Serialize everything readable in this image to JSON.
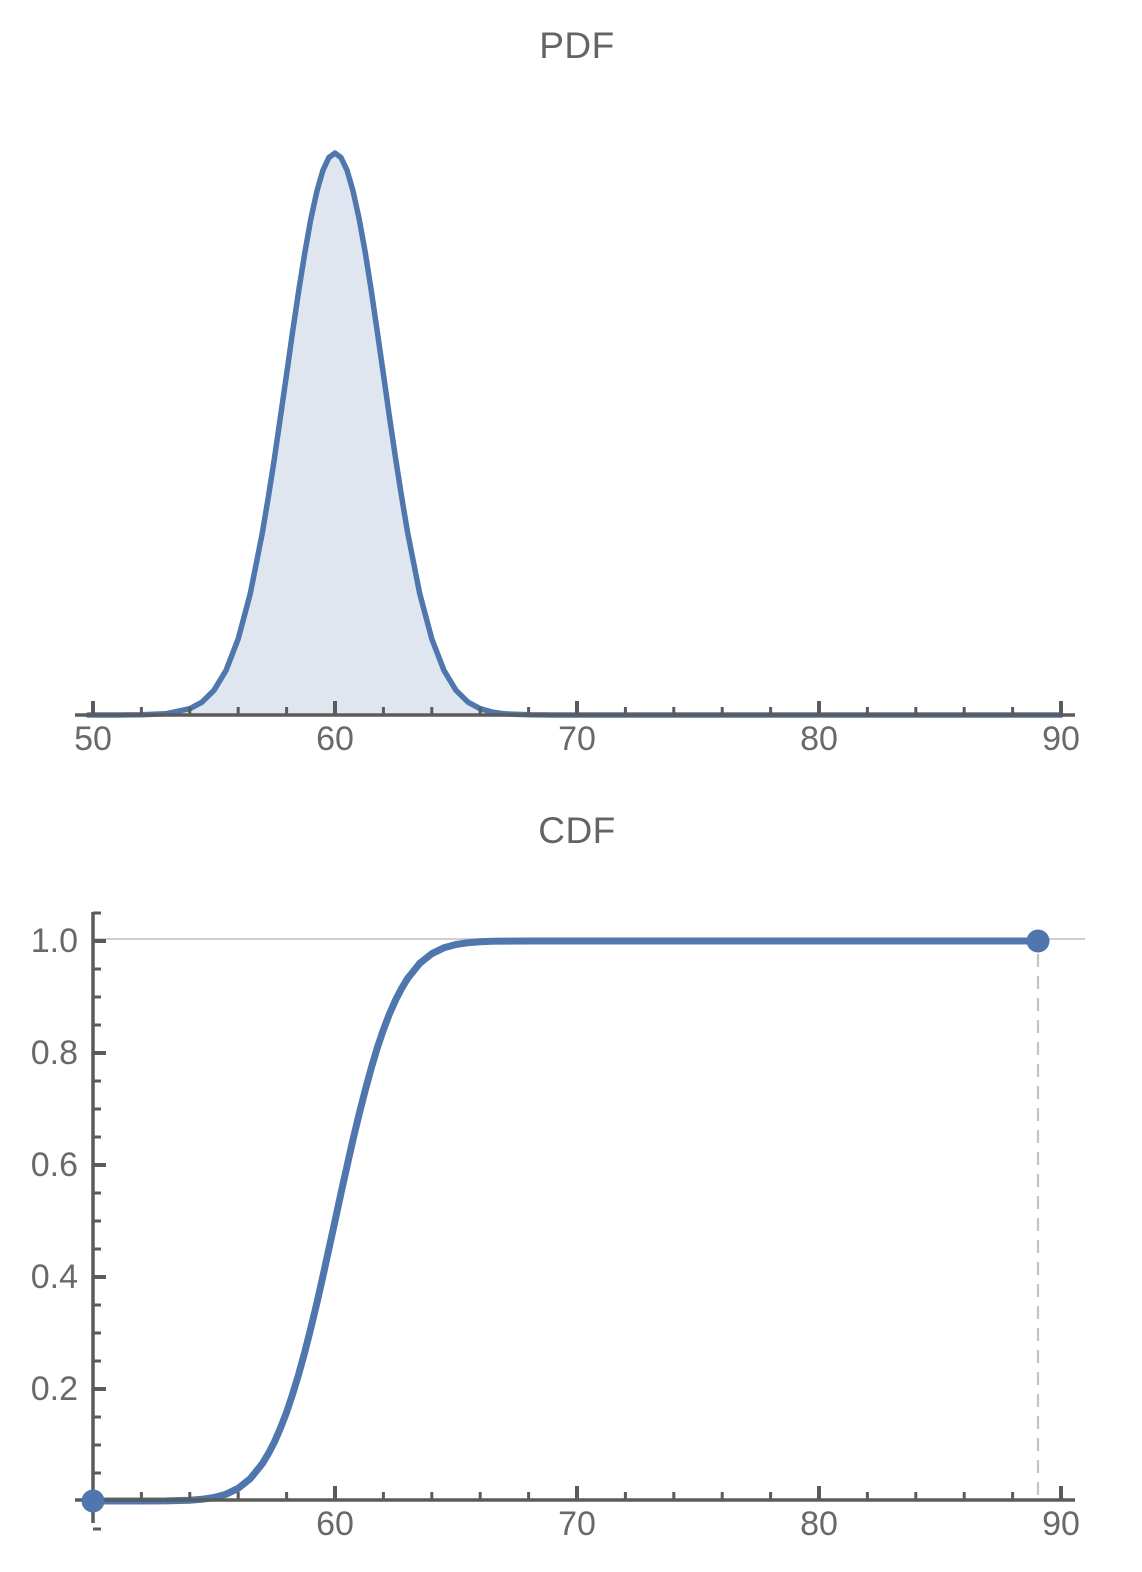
{
  "page": {
    "background": "#ffffff"
  },
  "palette": {
    "line_color": "#4f77ad",
    "fill_color": "rgba(79,119,173,0.18)",
    "marker_color": "#4f77ad",
    "axis_color": "#5b5b5b",
    "label_color": "#696969",
    "grid_color": "#c9c9c9",
    "dash_color": "#c4c4c4",
    "title_color": "#646464"
  },
  "chart_data": [
    {
      "type": "area",
      "title": "PDF",
      "subtitle": "",
      "distribution": "Normal(mean 60, sd 2) probability density",
      "xlabel": "",
      "ylabel": "",
      "xlim": [
        49.3,
        90.6
      ],
      "ylim": [
        0,
        0.21
      ],
      "grid": false,
      "legend": "none",
      "xticks_major": [
        50,
        60,
        70,
        80,
        90
      ],
      "xtick_labels": [
        "50",
        "60",
        "70",
        "80",
        "90"
      ],
      "xtick_minor_step": 2,
      "peak": {
        "x": 60,
        "y": 0.19947
      },
      "x": [
        49.8,
        51,
        52,
        53,
        54,
        54.5,
        55,
        55.5,
        56,
        56.5,
        57,
        57.25,
        57.5,
        57.75,
        58,
        58.25,
        58.5,
        58.75,
        59,
        59.25,
        59.5,
        59.75,
        60,
        60.25,
        60.5,
        60.75,
        61,
        61.25,
        61.5,
        61.75,
        62,
        62.25,
        62.5,
        62.75,
        63,
        63.5,
        64,
        64.5,
        65,
        65.5,
        66,
        66.5,
        67,
        68,
        69,
        70,
        72,
        75,
        80,
        85,
        90
      ],
      "y": [
        0,
        1e-05,
        7e-05,
        0.00044,
        0.00222,
        0.00455,
        0.00876,
        0.01586,
        0.027,
        0.04313,
        0.06477,
        0.0775,
        0.09132,
        0.10596,
        0.12099,
        0.13602,
        0.15058,
        0.16408,
        0.17603,
        0.18592,
        0.19333,
        0.19792,
        0.19947,
        0.19792,
        0.19333,
        0.18592,
        0.17603,
        0.16408,
        0.15058,
        0.13602,
        0.12099,
        0.10596,
        0.09132,
        0.0775,
        0.06477,
        0.04313,
        0.027,
        0.01586,
        0.00876,
        0.00455,
        0.00222,
        0.00102,
        0.00044,
        7e-05,
        1e-05,
        0,
        0,
        0,
        0,
        0,
        0
      ]
    },
    {
      "type": "line",
      "title": "CDF",
      "subtitle": "",
      "distribution": "Normal(mean 60, sd 2) cumulative distribution",
      "xlabel": "",
      "ylabel": "",
      "xlim": [
        49.3,
        90.6
      ],
      "ylim": [
        0,
        1.0
      ],
      "grid": false,
      "legend": "none",
      "xticks_major": [
        60,
        70,
        80,
        90
      ],
      "xtick_labels": [
        "60",
        "70",
        "80",
        "90"
      ],
      "xtick_minor_step": 2,
      "yticks_major": [
        0.2,
        0.4,
        0.6,
        0.8,
        1.0
      ],
      "ytick_labels": [
        "0.2",
        "0.4",
        "0.6",
        "0.8",
        "1.0"
      ],
      "ytick_minor_step": 0.05,
      "gridline_y": 1.0,
      "dashed_vline_x": 89.05,
      "markers": [
        {
          "x": 50,
          "y": 0
        },
        {
          "x": 89.05,
          "y": 1
        }
      ],
      "x": [
        50,
        51,
        52,
        53,
        54,
        54.5,
        55,
        55.5,
        56,
        56.5,
        57,
        57.25,
        57.5,
        57.75,
        58,
        58.25,
        58.5,
        58.75,
        59,
        59.25,
        59.5,
        59.75,
        60,
        60.25,
        60.5,
        60.75,
        61,
        61.25,
        61.5,
        61.75,
        62,
        62.25,
        62.5,
        62.75,
        63,
        63.5,
        64,
        64.5,
        65,
        65.5,
        66,
        66.5,
        67,
        68,
        69,
        70,
        72,
        75,
        80,
        85,
        89.05
      ],
      "y": [
        0,
        0,
        3e-05,
        0.00023,
        0.00135,
        0.00298,
        0.00621,
        0.01222,
        0.02275,
        0.04006,
        0.06681,
        0.08457,
        0.10565,
        0.1303,
        0.15866,
        0.19079,
        0.22663,
        0.26599,
        0.30854,
        0.35383,
        0.40129,
        0.45026,
        0.5,
        0.54974,
        0.59871,
        0.64617,
        0.69146,
        0.73401,
        0.77337,
        0.80921,
        0.84134,
        0.8697,
        0.89435,
        0.91543,
        0.93319,
        0.95994,
        0.97725,
        0.98778,
        0.99379,
        0.99702,
        0.99865,
        0.99942,
        0.99977,
        0.99997,
        1,
        1,
        1,
        1,
        1,
        1,
        1
      ]
    }
  ]
}
